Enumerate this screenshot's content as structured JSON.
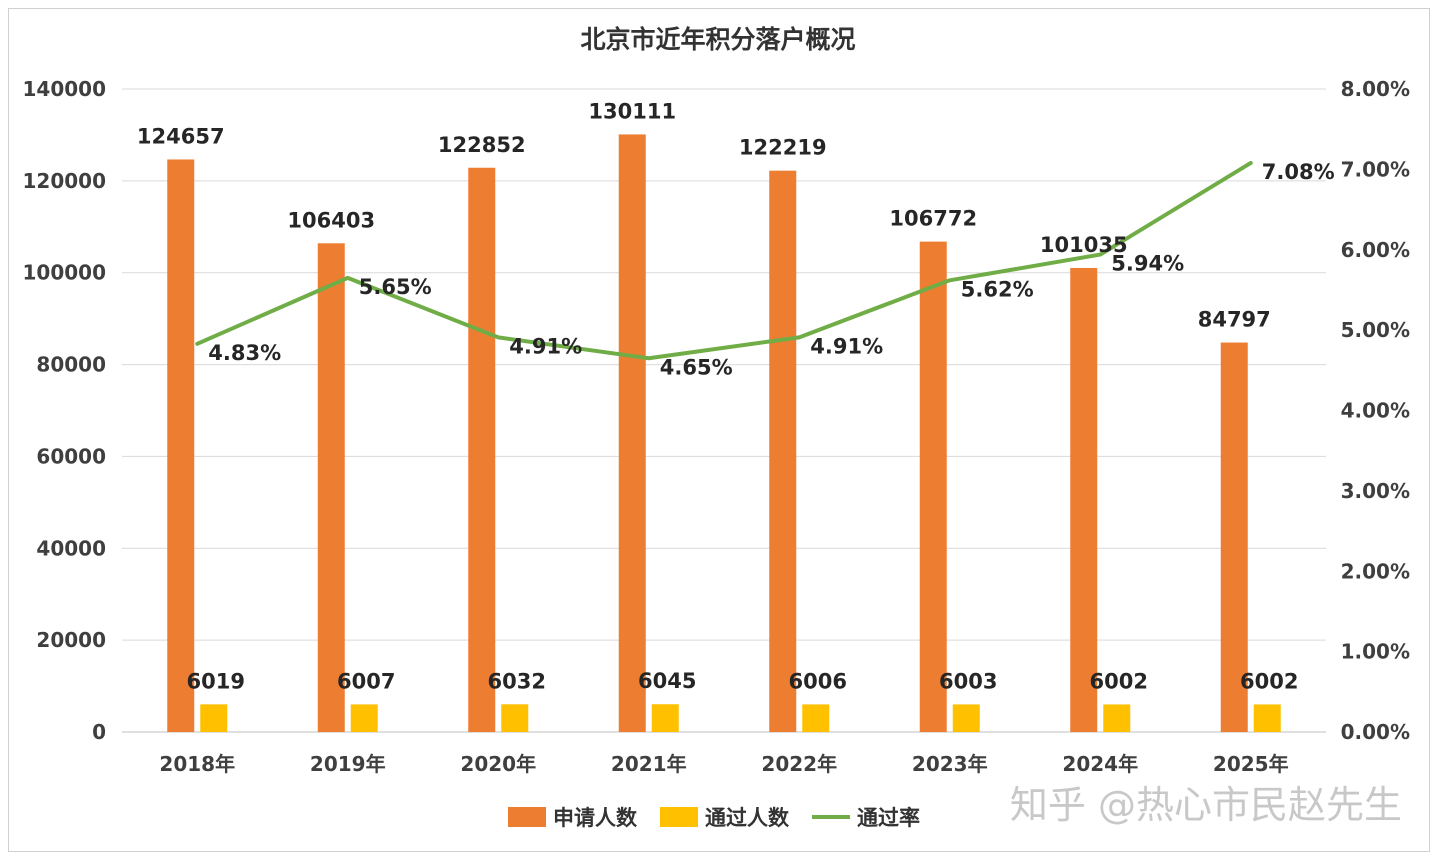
{
  "chart_data": {
    "type": "bar",
    "title": "北京市近年积分落户概况",
    "categories": [
      "2018年",
      "2019年",
      "2020年",
      "2021年",
      "2022年",
      "2023年",
      "2024年",
      "2025年"
    ],
    "series": [
      {
        "name": "申请人数",
        "kind": "bar",
        "axis": "left",
        "color": "#ed7d31",
        "values": [
          124657,
          106403,
          122852,
          130111,
          122219,
          106772,
          101035,
          84797
        ],
        "labels": [
          "124657",
          "106403",
          "122852",
          "130111",
          "122219",
          "106772",
          "101035",
          "84797"
        ]
      },
      {
        "name": "通过人数",
        "kind": "bar",
        "axis": "left",
        "color": "#ffc000",
        "values": [
          6019,
          6007,
          6032,
          6045,
          6006,
          6003,
          6002,
          6002
        ],
        "labels": [
          "6019",
          "6007",
          "6032",
          "6045",
          "6006",
          "6003",
          "6002",
          "6002"
        ]
      },
      {
        "name": "通过率",
        "kind": "line",
        "axis": "right",
        "color": "#70ad47",
        "values": [
          4.83,
          5.65,
          4.91,
          4.65,
          4.91,
          5.62,
          5.94,
          7.08
        ],
        "labels": [
          "4.83%",
          "5.65%",
          "4.91%",
          "4.65%",
          "4.91%",
          "5.62%",
          "5.94%",
          "7.08%"
        ]
      }
    ],
    "y_left": {
      "min": 0,
      "max": 140000,
      "ticks": [
        "0",
        "20000",
        "40000",
        "60000",
        "80000",
        "100000",
        "120000",
        "140000"
      ]
    },
    "y_right": {
      "min": 0,
      "max": 8,
      "ticks": [
        "0.00%",
        "1.00%",
        "2.00%",
        "3.00%",
        "4.00%",
        "5.00%",
        "6.00%",
        "7.00%",
        "8.00%"
      ]
    },
    "grid": true,
    "legend_position": "bottom"
  },
  "watermark": "知乎 @热心市民赵先生",
  "colors": {
    "grid": "#d9d9d9",
    "axis": "#bfbfbf"
  }
}
